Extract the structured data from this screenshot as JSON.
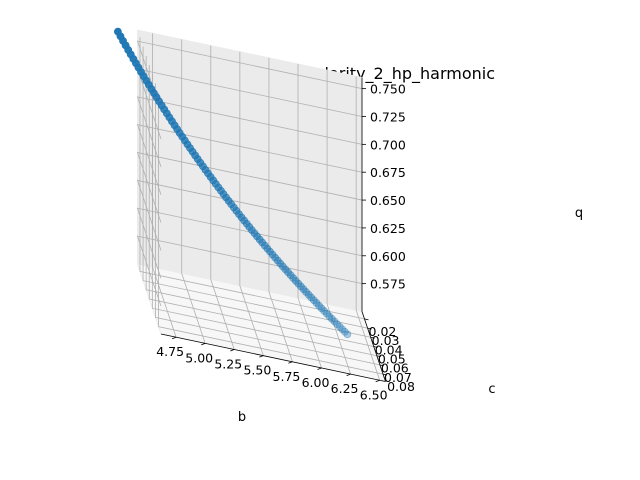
{
  "chart_data": {
    "type": "scatter",
    "projection": "3d",
    "title": "Point cloud for singularity_2_hp_harmonic",
    "xlabel": "b",
    "ylabel": "c",
    "zlabel": "q",
    "xlim": [
      4.62,
      6.55
    ],
    "ylim": [
      0.012,
      0.088
    ],
    "zlim": [
      0.55,
      0.76
    ],
    "xticks": [
      "4.75",
      "5.00",
      "5.25",
      "5.50",
      "5.75",
      "6.00",
      "6.25",
      "6.50"
    ],
    "yticks": [
      "0.02",
      "0.03",
      "0.04",
      "0.05",
      "0.06",
      "0.07",
      "0.08"
    ],
    "zticks": [
      "0.575",
      "0.600",
      "0.625",
      "0.650",
      "0.675",
      "0.700",
      "0.725",
      "0.750"
    ],
    "grid": true,
    "marker_color": "#1f77b4",
    "series": [
      {
        "curve": "c = 0.1 / b^2, q = 3.35 / b",
        "b_range": [
          4.47,
          6.45
        ],
        "point_count": 90
      }
    ]
  }
}
